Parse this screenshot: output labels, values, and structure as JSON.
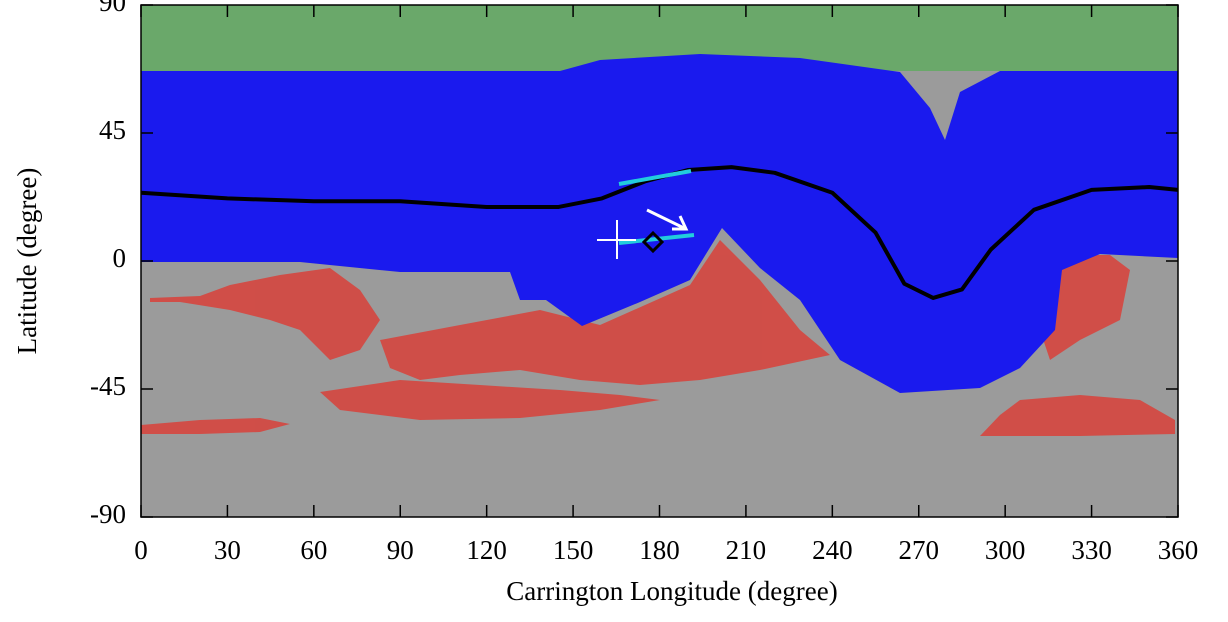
{
  "chart_data": {
    "type": "line",
    "xlabel": "Carrington Longitude (degree)",
    "ylabel": "Latitude (degree)",
    "xlim": [
      0,
      360
    ],
    "ylim": [
      -90,
      90
    ],
    "xticks": [
      0,
      30,
      60,
      90,
      120,
      150,
      180,
      210,
      240,
      270,
      300,
      330,
      360
    ],
    "yticks": [
      -90,
      -45,
      0,
      45,
      90
    ],
    "x": [
      0,
      30,
      60,
      90,
      120,
      145,
      160,
      175,
      190,
      205,
      220,
      240,
      255,
      265,
      275,
      285,
      295,
      310,
      330,
      350,
      360
    ],
    "series": [
      {
        "color": "#000000",
        "values": [
          24,
          22,
          21,
          21,
          19,
          19,
          22,
          28,
          32,
          33,
          31,
          24,
          10,
          -8,
          -13,
          -10,
          4,
          18,
          25,
          26,
          25
        ]
      }
    ]
  }
}
